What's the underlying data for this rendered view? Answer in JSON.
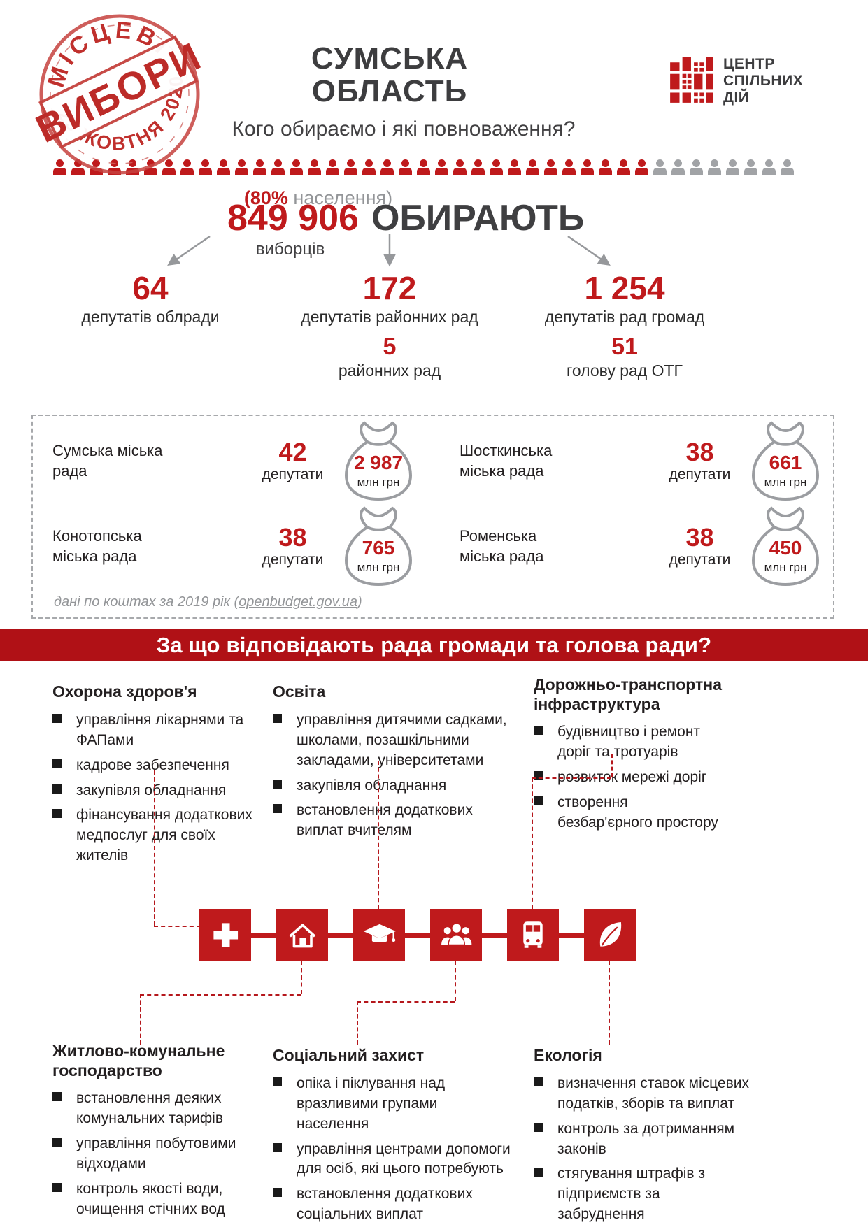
{
  "stamp": {
    "top": "МІСЦЕВІ",
    "main": "ВИБОРИ",
    "date": "25 ЖОВТНЯ 2020"
  },
  "header": {
    "region_line1": "СУМСЬКА",
    "region_line2": "ОБЛАСТЬ",
    "subtitle": "Кого обираємо і які повноваження?"
  },
  "logo": {
    "name_line1": "ЦЕНТР",
    "name_line2": "СПІЛЬНИХ",
    "name_line3": "ДІЙ"
  },
  "people_row": {
    "red_count": 33,
    "gray_count": 8
  },
  "electorate": {
    "percent_red": "(80%",
    "percent_gray": " населення)",
    "count": "849 906",
    "count_label": "виборців",
    "action": "ОБИРАЮТЬ"
  },
  "branches": [
    {
      "number": "64",
      "label": "депутатів облради",
      "sub_number": "",
      "sub_label": ""
    },
    {
      "number": "172",
      "label": "депутатів районних рад",
      "sub_number": "5",
      "sub_label": "районних рад"
    },
    {
      "number": "1 254",
      "label": "депутатів рад громад",
      "sub_number": "51",
      "sub_label": "голову рад ОТГ"
    }
  ],
  "councils": {
    "items": [
      {
        "name": "Сумська міська рада",
        "deputies_number": "42",
        "deputies_label": "депутати",
        "amount": "2 987",
        "amount_label": "млн грн"
      },
      {
        "name": "Шосткинська міська рада",
        "deputies_number": "38",
        "deputies_label": "депутати",
        "amount": "661",
        "amount_label": "млн грн"
      },
      {
        "name": "Конотопська міська рада",
        "deputies_number": "38",
        "deputies_label": "депутати",
        "amount": "765",
        "amount_label": "млн грн"
      },
      {
        "name": "Роменська міська рада",
        "deputies_number": "38",
        "deputies_label": "депутати",
        "amount": "450",
        "amount_label": "млн грн"
      }
    ],
    "footnote": {
      "prefix": "дані по коштах за 2019 рік (",
      "link": "openbudget.gov.ua",
      "suffix": ")"
    }
  },
  "banner": {
    "question": "За що відповідають рада громади та голова ради?"
  },
  "sections_top": [
    {
      "title": "Охорона здоров'я",
      "bullets": [
        "управління лікарнями та ФАПами",
        "кадрове забезпечення",
        "закупівля обладнання",
        "фінансування додаткових медпослуг для своїх жителів"
      ]
    },
    {
      "title": "Освіта",
      "bullets": [
        "управління дитячими садками, школами, позашкільними закладами, університетами",
        "закупівля обладнання",
        "встановлення додаткових виплат вчителям"
      ]
    },
    {
      "title": "Дорожньо-транспортна інфраструктура",
      "bullets": [
        "будівництво і ремонт доріг та тротуарів",
        "розвиток мережі доріг",
        "створення безбар'єрного простору"
      ]
    }
  ],
  "sections_bottom": [
    {
      "title": "Житлово-комунальне господарство",
      "bullets": [
        "встановлення деяких комунальних тарифів",
        "управління побутовими відходами",
        "контроль якості води, очищення стічних вод"
      ]
    },
    {
      "title": "Соціальний захист",
      "bullets": [
        "опіка і піклування над вразливими групами населення",
        "управління центрами допомоги для осіб, які цього потребують",
        "встановлення додаткових соціальних виплат"
      ]
    },
    {
      "title": "Екологія",
      "bullets": [
        "визначення ставок місцевих податків, зборів та виплат",
        "контроль за дотриманням законів",
        "стягування штрафів з підприємств за забруднення"
      ]
    }
  ],
  "icons": [
    "medical-cross",
    "house",
    "graduation-cap",
    "people-group",
    "bus",
    "leaf"
  ],
  "colors": {
    "accent_red": "#bf1a1c",
    "banner_red": "#b01116",
    "dark_text": "#414042",
    "gray": "#939598",
    "light_gray": "#a7a9ac"
  }
}
